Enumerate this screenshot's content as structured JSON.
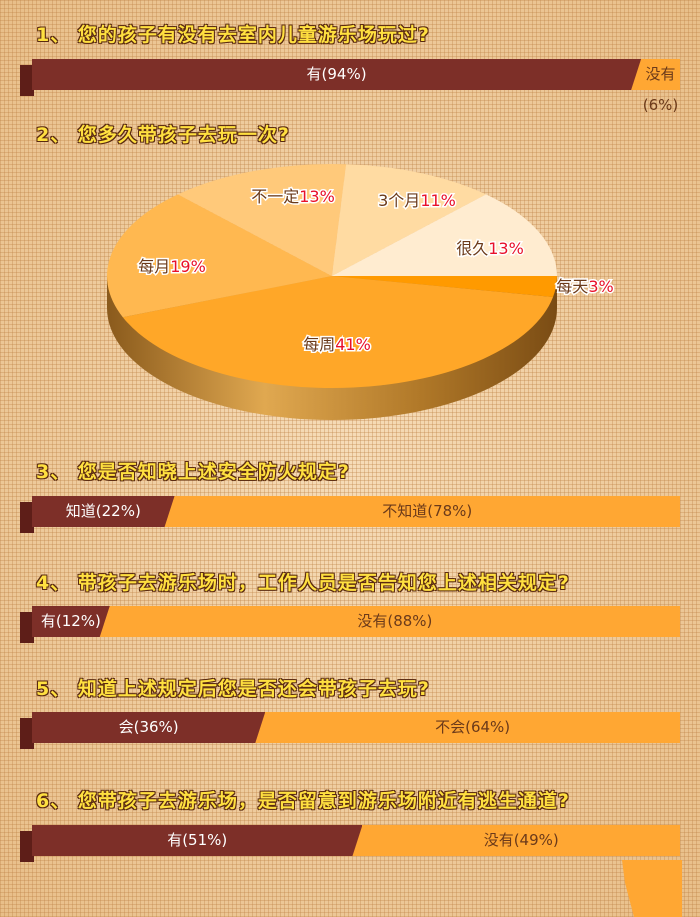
{
  "questions": [
    {
      "title": "1、 您的孩子有没有去室内儿童游乐场玩过?",
      "yes_label": "有(94%)",
      "no_label": "没有(6%)",
      "yes_pct": 94
    },
    {
      "title": "2、 您多久带孩子去玩一次?"
    },
    {
      "title": "3、 您是否知晓上述安全防火规定?",
      "yes_label": "知道(22%)",
      "no_label": "不知道(78%)",
      "yes_pct": 22
    },
    {
      "title": "4、 带孩子去游乐场时，工作人员是否告知您上述相关规定?",
      "yes_label": "有(12%)",
      "no_label": "没有(88%)",
      "yes_pct": 12
    },
    {
      "title": "5、 知道上述规定后您是否还会带孩子去玩?",
      "yes_label": "会(36%)",
      "no_label": "不会(64%)",
      "yes_pct": 36
    },
    {
      "title": "6、 您带孩子去游乐场，是否留意到游乐场附近有逃生通道?",
      "yes_label": "有(51%)",
      "no_label": "没有(49%)",
      "yes_pct": 51
    }
  ],
  "colors": {
    "yes": "#7d2f28",
    "no": "#ffa733",
    "title": "#ffe040",
    "pct": "#e8102a"
  },
  "chart_data": [
    {
      "type": "bar",
      "stacked": true,
      "orientation": "horizontal",
      "categories": [
        "有",
        "没有"
      ],
      "values": [
        94,
        6
      ]
    },
    {
      "type": "pie",
      "style": "3d",
      "slices": [
        {
          "label": "每天",
          "pct": "3%",
          "value": 3,
          "color": "#ff9a00"
        },
        {
          "label": "每周",
          "pct": "41%",
          "value": 41,
          "color": "#ffa728"
        },
        {
          "label": "每月",
          "pct": "19%",
          "value": 19,
          "color": "#ffb850"
        },
        {
          "label": "不一定",
          "pct": "13%",
          "value": 13,
          "color": "#ffc97a"
        },
        {
          "label": "3个月",
          "pct": "11%",
          "value": 11,
          "color": "#ffdba2"
        },
        {
          "label": "很久",
          "pct": "13%",
          "value": 13,
          "color": "#ffecd0"
        }
      ]
    },
    {
      "type": "bar",
      "stacked": true,
      "orientation": "horizontal",
      "categories": [
        "知道",
        "不知道"
      ],
      "values": [
        22,
        78
      ]
    },
    {
      "type": "bar",
      "stacked": true,
      "orientation": "horizontal",
      "categories": [
        "有",
        "没有"
      ],
      "values": [
        12,
        88
      ]
    },
    {
      "type": "bar",
      "stacked": true,
      "orientation": "horizontal",
      "categories": [
        "会",
        "不会"
      ],
      "values": [
        36,
        64
      ]
    },
    {
      "type": "bar",
      "stacked": true,
      "orientation": "horizontal",
      "categories": [
        "有",
        "没有"
      ],
      "values": [
        51,
        49
      ]
    }
  ]
}
